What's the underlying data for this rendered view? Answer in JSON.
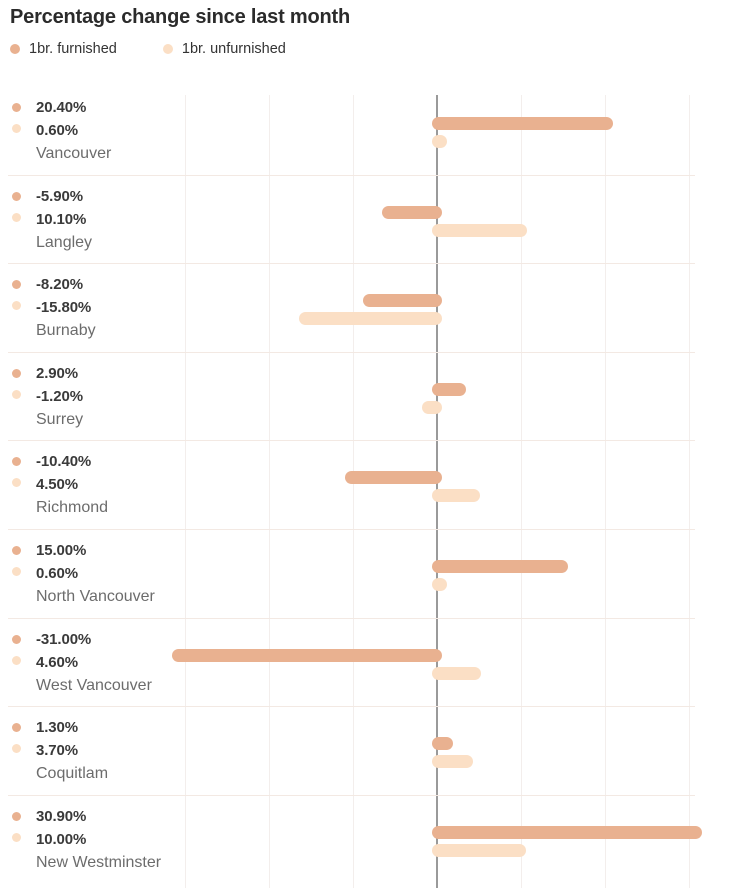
{
  "title": "Percentage change since last month",
  "legend": [
    {
      "label": "1br. furnished",
      "color": "#e9b190"
    },
    {
      "label": "1br. unfurnished",
      "color": "#fbdfc5"
    }
  ],
  "colors": {
    "furnished": "#e9b190",
    "unfurnished": "#fbdfc5",
    "axis_line": "#9a9a9a",
    "gridline": "#f3eeec",
    "separator": "#f3e9e3",
    "title_text": "#2b2b2b",
    "value_text": "#3a3a3a",
    "city_text": "#6c6c6c"
  },
  "chart_data": {
    "type": "bar",
    "orientation": "horizontal",
    "title": "Percentage change since last month",
    "unit": "%",
    "grid": true,
    "legend_position": "top",
    "xlim": [
      -31,
      35
    ],
    "x_ticks": [
      -30,
      -20,
      -10,
      0,
      10,
      20,
      30
    ],
    "categories": [
      "Vancouver",
      "Langley",
      "Burnaby",
      "Surrey",
      "Richmond",
      "North Vancouver",
      "West Vancouver",
      "Coquitlam",
      "New Westminster"
    ],
    "series": [
      {
        "name": "1br. furnished",
        "values": [
          20.4,
          -5.9,
          -8.2,
          2.9,
          -10.4,
          15.0,
          -31.0,
          1.3,
          30.9
        ]
      },
      {
        "name": "1br. unfurnished",
        "values": [
          0.6,
          10.1,
          -15.8,
          -1.2,
          4.5,
          0.6,
          4.6,
          3.7,
          10.0
        ]
      }
    ],
    "rows": [
      {
        "city": "Vancouver",
        "furnished": 20.4,
        "furnished_label": "20.40%",
        "unfurnished": 0.6,
        "unfurnished_label": "0.60%"
      },
      {
        "city": "Langley",
        "furnished": -5.9,
        "furnished_label": "-5.90%",
        "unfurnished": 10.1,
        "unfurnished_label": "10.10%"
      },
      {
        "city": "Burnaby",
        "furnished": -8.2,
        "furnished_label": "-8.20%",
        "unfurnished": -15.8,
        "unfurnished_label": "-15.80%"
      },
      {
        "city": "Surrey",
        "furnished": 2.9,
        "furnished_label": "2.90%",
        "unfurnished": -1.2,
        "unfurnished_label": "-1.20%"
      },
      {
        "city": "Richmond",
        "furnished": -10.4,
        "furnished_label": "-10.40%",
        "unfurnished": 4.5,
        "unfurnished_label": "4.50%"
      },
      {
        "city": "North Vancouver",
        "furnished": 15.0,
        "furnished_label": "15.00%",
        "unfurnished": 0.6,
        "unfurnished_label": "0.60%"
      },
      {
        "city": "West Vancouver",
        "furnished": -31.0,
        "furnished_label": "-31.00%",
        "unfurnished": 4.6,
        "unfurnished_label": "4.60%"
      },
      {
        "city": "Coquitlam",
        "furnished": 1.3,
        "furnished_label": "1.30%",
        "unfurnished": 3.7,
        "unfurnished_label": "3.70%"
      },
      {
        "city": "New Westminster",
        "furnished": 30.9,
        "furnished_label": "30.90%",
        "unfurnished": 10.0,
        "unfurnished_label": "10.00%"
      }
    ]
  }
}
